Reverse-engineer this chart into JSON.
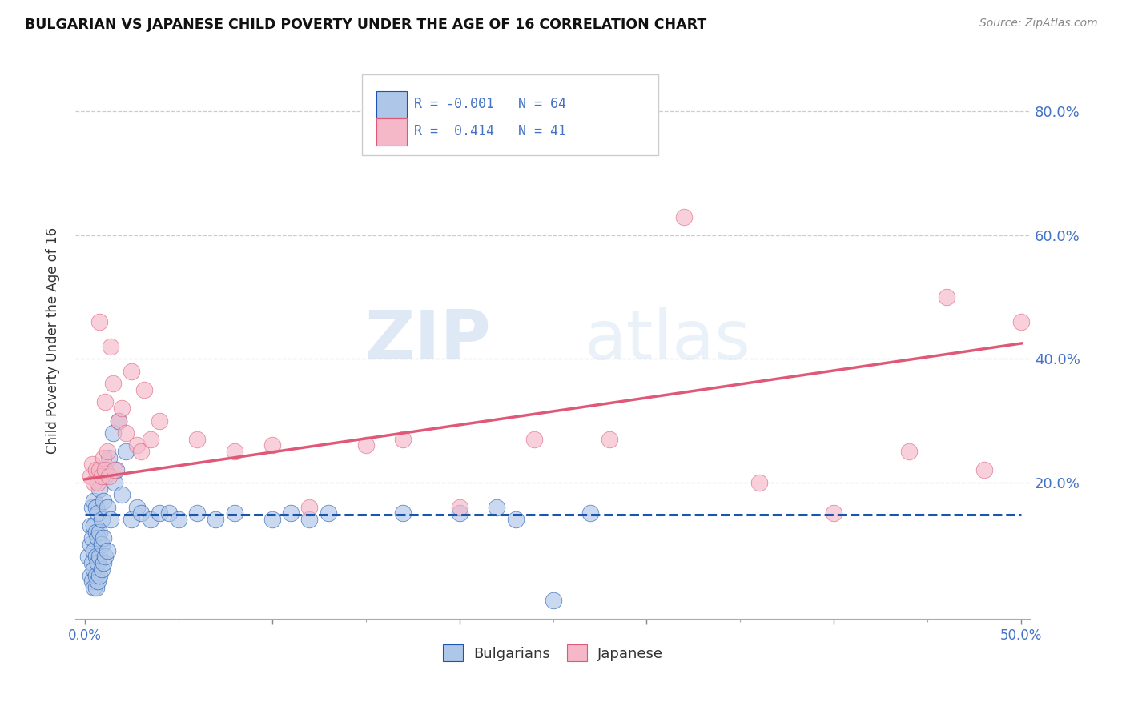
{
  "title": "BULGARIAN VS JAPANESE CHILD POVERTY UNDER THE AGE OF 16 CORRELATION CHART",
  "source": "Source: ZipAtlas.com",
  "ylabel": "Child Poverty Under the Age of 16",
  "ytick_labels": [
    "80.0%",
    "60.0%",
    "40.0%",
    "20.0%"
  ],
  "ytick_values": [
    0.8,
    0.6,
    0.4,
    0.2
  ],
  "xlim": [
    -0.005,
    0.505
  ],
  "ylim": [
    -0.02,
    0.88
  ],
  "legend_label1": "Bulgarians",
  "legend_label2": "Japanese",
  "R1": "-0.001",
  "N1": "64",
  "R2": "0.414",
  "N2": "41",
  "color_bulgarian": "#aec6e8",
  "color_japanese": "#f5b8c8",
  "color_trendline_bulgarian": "#1a56b0",
  "color_trendline_japanese": "#e05878",
  "watermark_zip": "ZIP",
  "watermark_atlas": "atlas",
  "bg_color": "#ffffff",
  "bulgarian_x": [
    0.002,
    0.003,
    0.003,
    0.003,
    0.004,
    0.004,
    0.004,
    0.004,
    0.005,
    0.005,
    0.005,
    0.005,
    0.005,
    0.006,
    0.006,
    0.006,
    0.006,
    0.006,
    0.007,
    0.007,
    0.007,
    0.007,
    0.008,
    0.008,
    0.008,
    0.008,
    0.009,
    0.009,
    0.009,
    0.01,
    0.01,
    0.01,
    0.011,
    0.011,
    0.012,
    0.012,
    0.013,
    0.014,
    0.015,
    0.016,
    0.017,
    0.018,
    0.02,
    0.022,
    0.025,
    0.028,
    0.03,
    0.035,
    0.04,
    0.045,
    0.05,
    0.06,
    0.07,
    0.08,
    0.1,
    0.11,
    0.12,
    0.13,
    0.17,
    0.2,
    0.22,
    0.23,
    0.25,
    0.27
  ],
  "bulgarian_y": [
    0.08,
    0.05,
    0.1,
    0.13,
    0.04,
    0.07,
    0.11,
    0.16,
    0.03,
    0.06,
    0.09,
    0.13,
    0.17,
    0.03,
    0.05,
    0.08,
    0.12,
    0.16,
    0.04,
    0.07,
    0.11,
    0.15,
    0.05,
    0.08,
    0.12,
    0.19,
    0.06,
    0.1,
    0.14,
    0.07,
    0.11,
    0.17,
    0.08,
    0.21,
    0.09,
    0.16,
    0.24,
    0.14,
    0.28,
    0.2,
    0.22,
    0.3,
    0.18,
    0.25,
    0.14,
    0.16,
    0.15,
    0.14,
    0.15,
    0.15,
    0.14,
    0.15,
    0.14,
    0.15,
    0.14,
    0.15,
    0.14,
    0.15,
    0.15,
    0.15,
    0.16,
    0.14,
    0.01,
    0.15
  ],
  "japanese_x": [
    0.003,
    0.004,
    0.005,
    0.006,
    0.007,
    0.008,
    0.008,
    0.009,
    0.01,
    0.011,
    0.011,
    0.012,
    0.013,
    0.014,
    0.015,
    0.016,
    0.018,
    0.02,
    0.022,
    0.025,
    0.028,
    0.03,
    0.032,
    0.035,
    0.04,
    0.06,
    0.08,
    0.1,
    0.12,
    0.15,
    0.17,
    0.2,
    0.24,
    0.28,
    0.32,
    0.36,
    0.4,
    0.44,
    0.46,
    0.48,
    0.5
  ],
  "japanese_y": [
    0.21,
    0.23,
    0.2,
    0.22,
    0.2,
    0.46,
    0.22,
    0.21,
    0.24,
    0.22,
    0.33,
    0.25,
    0.21,
    0.42,
    0.36,
    0.22,
    0.3,
    0.32,
    0.28,
    0.38,
    0.26,
    0.25,
    0.35,
    0.27,
    0.3,
    0.27,
    0.25,
    0.26,
    0.16,
    0.26,
    0.27,
    0.16,
    0.27,
    0.27,
    0.63,
    0.2,
    0.15,
    0.25,
    0.5,
    0.22,
    0.46
  ],
  "trendline_bg_x0": 0.0,
  "trendline_bg_x1": 0.5,
  "trendline_bg_y0": 0.148,
  "trendline_bg_y1": 0.148,
  "trendline_jp_x0": 0.0,
  "trendline_jp_x1": 0.5,
  "trendline_jp_y0": 0.205,
  "trendline_jp_y1": 0.425
}
